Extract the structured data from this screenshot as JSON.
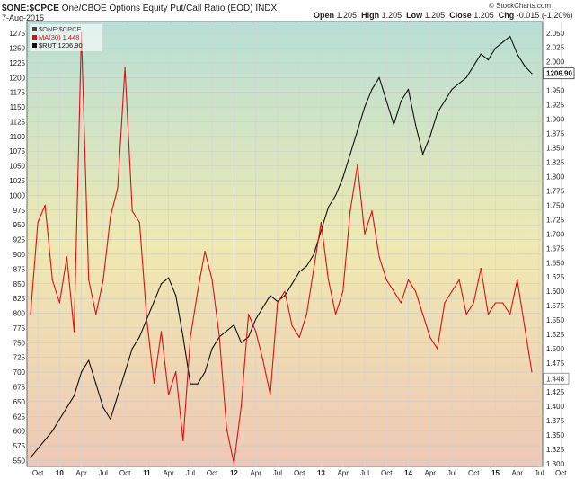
{
  "header": {
    "symbol": "$ONE:$CPCE",
    "description": "One/CBOE Options Equity Put/Call Ratio (EOD)",
    "exchange": "INDX",
    "date": "7-Aug-2015",
    "open_label": "Open",
    "open": "1.205",
    "high_label": "High",
    "high": "1.205",
    "low_label": "Low",
    "low": "1.205",
    "close_label": "Close",
    "close": "1.205",
    "chg_label": "Chg",
    "chg": "-0.015 (-1.20%)",
    "credit": "© StockCharts.com"
  },
  "legend": [
    {
      "text": "$ONE:$CPCE",
      "color": "#444444"
    },
    {
      "text": "MA(30) 1.448",
      "color": "#dd1111"
    },
    {
      "text": "$RUT 1206.90",
      "color": "#111111"
    }
  ],
  "right_badges": {
    "rut_last": "1206.90",
    "ma_last": "1.448"
  },
  "colors": {
    "ma_line": "#dd1111",
    "rut_line": "#111111",
    "bg_top": "#b7dfd6",
    "bg_mid": "#efe9b2",
    "bg_bottom": "#efc8b5"
  },
  "chart_data": {
    "type": "line",
    "x_tick_labels": [
      "Oct",
      "10",
      "Apr",
      "Jul",
      "Oct",
      "11",
      "Apr",
      "Jul",
      "Oct",
      "12",
      "Apr",
      "Jul",
      "Oct",
      "13",
      "Apr",
      "Jul",
      "Oct",
      "14",
      "Apr",
      "Jul",
      "Oct",
      "15",
      "Apr",
      "Jul",
      "Oct"
    ],
    "x_range_months": [
      0,
      70
    ],
    "left_axis": {
      "label": "",
      "range": [
        540,
        1295
      ],
      "ticks": [
        550,
        575,
        600,
        625,
        650,
        675,
        700,
        725,
        750,
        775,
        800,
        825,
        850,
        875,
        900,
        925,
        950,
        975,
        1000,
        1025,
        1050,
        1075,
        1100,
        1125,
        1150,
        1175,
        1200,
        1225,
        1250,
        1275
      ]
    },
    "right_axis": {
      "label": "",
      "range": [
        1.295,
        2.07
      ],
      "ticks": [
        "1.300",
        "1.325",
        "1.350",
        "1.375",
        "1.400",
        "1.425",
        "1.450",
        "1.475",
        "1.500",
        "1.525",
        "1.550",
        "1.575",
        "1.600",
        "1.625",
        "1.650",
        "1.675",
        "1.700",
        "1.725",
        "1.750",
        "1.775",
        "1.800",
        "1.825",
        "1.850",
        "1.875",
        "1.900",
        "1.925",
        "1.950",
        "1.975",
        "2.000",
        "2.025",
        "2.050"
      ]
    },
    "series": [
      {
        "name": "$RUT 1206.90",
        "axis": "left",
        "x": [
          0,
          1,
          2,
          3,
          4,
          5,
          6,
          7,
          8,
          9,
          10,
          11,
          12,
          13,
          14,
          15,
          16,
          17,
          18,
          19,
          20,
          21,
          22,
          23,
          24,
          25,
          26,
          27,
          28,
          29,
          30,
          31,
          32,
          33,
          34,
          35,
          36,
          37,
          38,
          39,
          40,
          41,
          42,
          43,
          44,
          45,
          46,
          47,
          48,
          49,
          50,
          51,
          52,
          53,
          54,
          55,
          56,
          57,
          58,
          59,
          60,
          61,
          62,
          63,
          64,
          65,
          66,
          67,
          68,
          69
        ],
        "y": [
          555,
          570,
          585,
          600,
          620,
          640,
          660,
          700,
          720,
          680,
          640,
          620,
          660,
          700,
          740,
          760,
          790,
          820,
          850,
          860,
          830,
          760,
          680,
          680,
          700,
          740,
          760,
          770,
          780,
          750,
          760,
          790,
          810,
          830,
          820,
          830,
          850,
          870,
          880,
          900,
          940,
          980,
          1000,
          1030,
          1070,
          1110,
          1150,
          1180,
          1200,
          1160,
          1120,
          1160,
          1180,
          1120,
          1070,
          1100,
          1140,
          1160,
          1180,
          1190,
          1200,
          1220,
          1240,
          1230,
          1250,
          1260,
          1270,
          1240,
          1220,
          1207
        ]
      },
      {
        "name": "MA(30) 1.448",
        "axis": "right",
        "x": [
          0,
          1,
          2,
          3,
          4,
          5,
          6,
          7,
          8,
          9,
          10,
          11,
          12,
          13,
          14,
          15,
          16,
          17,
          18,
          19,
          20,
          21,
          22,
          23,
          24,
          25,
          26,
          27,
          28,
          29,
          30,
          31,
          32,
          33,
          34,
          35,
          36,
          37,
          38,
          39,
          40,
          41,
          42,
          43,
          44,
          45,
          46,
          47,
          48,
          49,
          50,
          51,
          52,
          53,
          54,
          55,
          56,
          57,
          58,
          59,
          60,
          61,
          62,
          63,
          64,
          65,
          66,
          67,
          68,
          69
        ],
        "y": [
          1.56,
          1.72,
          1.75,
          1.62,
          1.58,
          1.66,
          1.53,
          2.05,
          1.62,
          1.56,
          1.62,
          1.73,
          1.78,
          1.99,
          1.74,
          1.72,
          1.55,
          1.44,
          1.53,
          1.42,
          1.46,
          1.34,
          1.52,
          1.6,
          1.67,
          1.62,
          1.52,
          1.36,
          1.3,
          1.4,
          1.56,
          1.53,
          1.48,
          1.42,
          1.58,
          1.6,
          1.54,
          1.52,
          1.56,
          1.64,
          1.72,
          1.62,
          1.56,
          1.6,
          1.74,
          1.82,
          1.7,
          1.74,
          1.66,
          1.62,
          1.6,
          1.58,
          1.62,
          1.6,
          1.56,
          1.52,
          1.5,
          1.58,
          1.6,
          1.62,
          1.56,
          1.58,
          1.64,
          1.56,
          1.58,
          1.58,
          1.56,
          1.62,
          1.54,
          1.46
        ]
      }
    ]
  }
}
